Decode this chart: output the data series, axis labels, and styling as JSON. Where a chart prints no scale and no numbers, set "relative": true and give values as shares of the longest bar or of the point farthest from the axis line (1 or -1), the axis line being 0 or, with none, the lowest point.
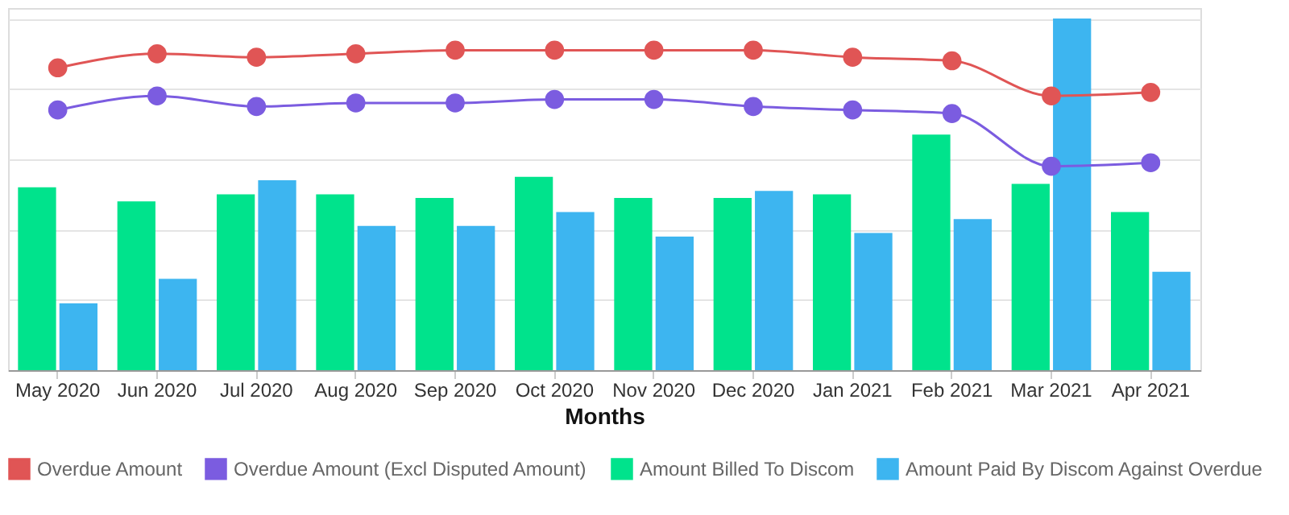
{
  "chart_data": {
    "type": "bar",
    "xlabel": "Months",
    "relative": true,
    "grid": "y",
    "legend": "bottom",
    "marker": "circle",
    "line_style": "solid",
    "categories": [
      "May 2020",
      "Jun 2020",
      "Jul 2020",
      "Aug 2020",
      "Sep 2020",
      "Oct 2020",
      "Nov 2020",
      "Dec 2020",
      "Jan 2021",
      "Feb 2021",
      "Mar 2021",
      "Apr 2021"
    ],
    "series": [
      {
        "name": "Overdue Amount",
        "type": "line",
        "color": "#e05555",
        "values": [
          0.86,
          0.9,
          0.89,
          0.9,
          0.91,
          0.91,
          0.91,
          0.91,
          0.89,
          0.88,
          0.78,
          0.79
        ]
      },
      {
        "name": "Overdue Amount (Excl Disputed Amount)",
        "type": "line",
        "color": "#7b5ce0",
        "values": [
          0.74,
          0.78,
          0.75,
          0.76,
          0.76,
          0.77,
          0.77,
          0.75,
          0.74,
          0.73,
          0.58,
          0.59
        ]
      },
      {
        "name": "Amount Billed To Discom",
        "color": "#00e38c",
        "values": [
          0.52,
          0.48,
          0.5,
          0.5,
          0.49,
          0.55,
          0.49,
          0.49,
          0.5,
          0.67,
          0.53,
          0.45
        ]
      },
      {
        "name": "Amount Paid By Discom Against Overdue",
        "color": "#3db5f0",
        "values": [
          0.19,
          0.26,
          0.54,
          0.41,
          0.41,
          0.45,
          0.38,
          0.51,
          0.39,
          0.43,
          1,
          0.28
        ]
      }
    ]
  }
}
